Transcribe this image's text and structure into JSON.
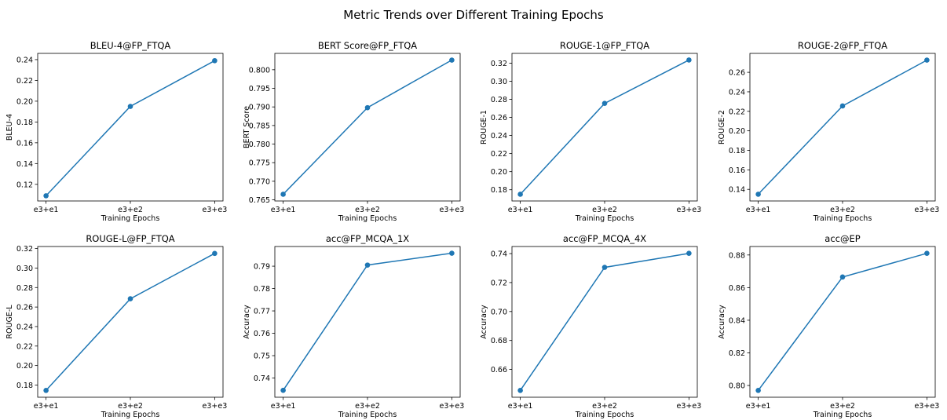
{
  "suptitle": "Metric Trends over Different Training Epochs",
  "series_color": "#1f77b4",
  "chart_data": [
    {
      "type": "line",
      "title": "BLEU-4@FP_FTQA",
      "xlabel": "Training Epochs",
      "ylabel": "BLEU-4",
      "categories": [
        "e3+e1",
        "e3+e2",
        "e3+e3"
      ],
      "values": [
        0.109,
        0.195,
        0.239
      ],
      "ylim": [
        0.104,
        0.246
      ],
      "yticks": [
        0.12,
        0.14,
        0.16,
        0.18,
        0.2,
        0.22,
        0.24
      ],
      "yticklabels": [
        "0.12",
        "0.14",
        "0.16",
        "0.18",
        "0.20",
        "0.22",
        "0.24"
      ]
    },
    {
      "type": "line",
      "title": "BERT Score@FP_FTQA",
      "xlabel": "Training Epochs",
      "ylabel": "BERT Score",
      "categories": [
        "e3+e1",
        "e3+e2",
        "e3+e3"
      ],
      "values": [
        0.7665,
        0.7898,
        0.8026
      ],
      "ylim": [
        0.7647,
        0.8044
      ],
      "yticks": [
        0.765,
        0.77,
        0.775,
        0.78,
        0.785,
        0.79,
        0.795,
        0.8
      ],
      "yticklabels": [
        "0.765",
        "0.770",
        "0.775",
        "0.780",
        "0.785",
        "0.790",
        "0.795",
        "0.800"
      ]
    },
    {
      "type": "line",
      "title": "ROUGE-1@FP_FTQA",
      "xlabel": "Training Epochs",
      "ylabel": "ROUGE-1",
      "categories": [
        "e3+e1",
        "e3+e2",
        "e3+e3"
      ],
      "values": [
        0.175,
        0.2755,
        0.3235
      ],
      "ylim": [
        0.1676,
        0.3308
      ],
      "yticks": [
        0.18,
        0.2,
        0.22,
        0.24,
        0.26,
        0.28,
        0.3,
        0.32
      ],
      "yticklabels": [
        "0.18",
        "0.20",
        "0.22",
        "0.24",
        "0.26",
        "0.28",
        "0.30",
        "0.32"
      ]
    },
    {
      "type": "line",
      "title": "ROUGE-2@FP_FTQA",
      "xlabel": "Training Epochs",
      "ylabel": "ROUGE-2",
      "categories": [
        "e3+e1",
        "e3+e2",
        "e3+e3"
      ],
      "values": [
        0.135,
        0.2255,
        0.2725
      ],
      "ylim": [
        0.1281,
        0.2794
      ],
      "yticks": [
        0.14,
        0.16,
        0.18,
        0.2,
        0.22,
        0.24,
        0.26
      ],
      "yticklabels": [
        "0.14",
        "0.16",
        "0.18",
        "0.20",
        "0.22",
        "0.24",
        "0.26"
      ]
    },
    {
      "type": "line",
      "title": "ROUGE-L@FP_FTQA",
      "xlabel": "Training Epochs",
      "ylabel": "ROUGE-L",
      "categories": [
        "e3+e1",
        "e3+e2",
        "e3+e3"
      ],
      "values": [
        0.1745,
        0.2685,
        0.315
      ],
      "ylim": [
        0.1675,
        0.3221
      ],
      "yticks": [
        0.18,
        0.2,
        0.22,
        0.24,
        0.26,
        0.28,
        0.3,
        0.32
      ],
      "yticklabels": [
        "0.18",
        "0.20",
        "0.22",
        "0.24",
        "0.26",
        "0.28",
        "0.30",
        "0.32"
      ]
    },
    {
      "type": "line",
      "title": "acc@FP_MCQA_1X",
      "xlabel": "Training Epochs",
      "ylabel": "Accuracy",
      "categories": [
        "e3+e1",
        "e3+e2",
        "e3+e3"
      ],
      "values": [
        0.7345,
        0.7905,
        0.7958
      ],
      "ylim": [
        0.7314,
        0.7988
      ],
      "yticks": [
        0.74,
        0.75,
        0.76,
        0.77,
        0.78,
        0.79
      ],
      "yticklabels": [
        "0.74",
        "0.75",
        "0.76",
        "0.77",
        "0.78",
        "0.79"
      ]
    },
    {
      "type": "line",
      "title": "acc@FP_MCQA_4X",
      "xlabel": "Training Epochs",
      "ylabel": "Accuracy",
      "categories": [
        "e3+e1",
        "e3+e2",
        "e3+e3"
      ],
      "values": [
        0.6455,
        0.7305,
        0.7402
      ],
      "ylim": [
        0.6408,
        0.7449
      ],
      "yticks": [
        0.66,
        0.68,
        0.7,
        0.72,
        0.74
      ],
      "yticklabels": [
        "0.66",
        "0.68",
        "0.70",
        "0.72",
        "0.74"
      ]
    },
    {
      "type": "line",
      "title": "acc@EP",
      "xlabel": "Training Epochs",
      "ylabel": "Accuracy",
      "categories": [
        "e3+e1",
        "e3+e2",
        "e3+e3"
      ],
      "values": [
        0.797,
        0.8665,
        0.881
      ],
      "ylim": [
        0.7928,
        0.8852
      ],
      "yticks": [
        0.8,
        0.82,
        0.84,
        0.86,
        0.88
      ],
      "yticklabels": [
        "0.80",
        "0.82",
        "0.84",
        "0.86",
        "0.88"
      ]
    }
  ]
}
